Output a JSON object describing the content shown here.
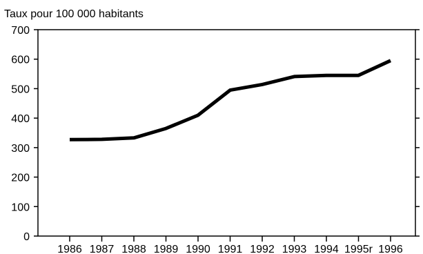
{
  "chart_data": {
    "type": "line",
    "title": "",
    "xlabel": "",
    "ylabel": "Taux pour 100 000 habitants",
    "ylim": [
      0,
      700
    ],
    "yticks": [
      0,
      100,
      200,
      300,
      400,
      500,
      600,
      700
    ],
    "categories": [
      "1986",
      "1987",
      "1988",
      "1989",
      "1990",
      "1991",
      "1992",
      "1993",
      "1994",
      "1995r",
      "1996"
    ],
    "series": [
      {
        "values": [
          327,
          328,
          333,
          365,
          410,
          495,
          514,
          541,
          545,
          545,
          595
        ]
      }
    ],
    "grid": false,
    "legend": "none",
    "line_color": "#000000"
  }
}
